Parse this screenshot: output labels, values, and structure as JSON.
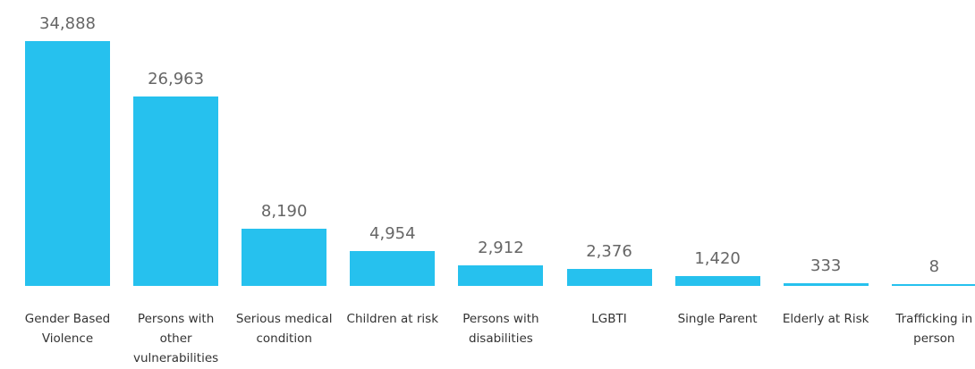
{
  "chart_data": {
    "type": "bar",
    "categories": [
      "Gender Based Violence",
      "Persons with other vulnerabilities",
      "Serious medical condition",
      "Children at risk",
      "Persons with disabilities",
      "LGBTI",
      "Single Parent",
      "Elderly at Risk",
      "Trafficking in person"
    ],
    "values": [
      34888,
      26963,
      8190,
      4954,
      2912,
      2376,
      1420,
      333,
      8
    ],
    "value_labels": [
      "34,888",
      "26,963",
      "8,190",
      "4,954",
      "2,912",
      "2,376",
      "1,420",
      "333",
      "8"
    ],
    "color": "#26c1ee"
  }
}
